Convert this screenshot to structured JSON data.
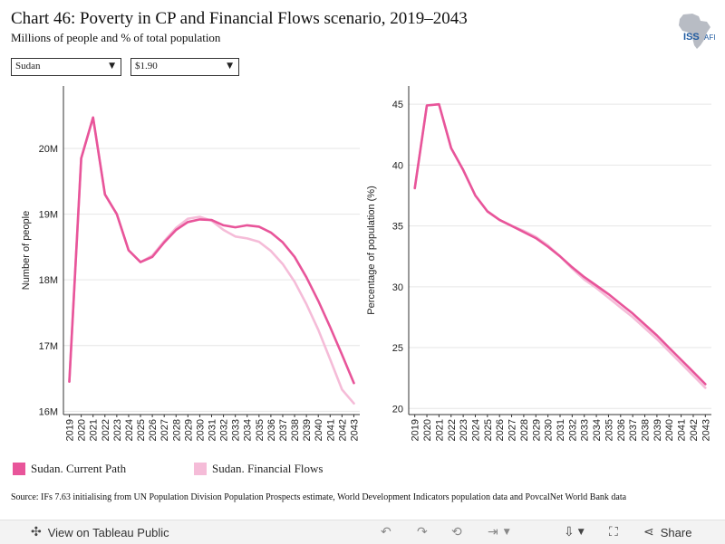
{
  "header": {
    "title": "Chart 46: Poverty in CP and Financial Flows scenario, 2019–2043",
    "subtitle": "Millions of people and % of total population",
    "logo_text": "ISS",
    "logo_subtext": "AFI"
  },
  "filters": {
    "country": "Sudan",
    "poverty_line": "$1.90"
  },
  "colors": {
    "current_path": "#e8559a",
    "financial_flows": "#f5bcd8",
    "grid": "#e6e6e6",
    "axis": "#333333"
  },
  "legend": {
    "items": [
      {
        "label": "Sudan. Current Path",
        "color": "#e8559a"
      },
      {
        "label": "Sudan. Financial Flows",
        "color": "#f5bcd8"
      }
    ]
  },
  "source": "Source: IFs 7.63 initialising from UN Population Division Population Prospects estimate, World Development Indicators population data and PovcalNet World Bank data",
  "footer": {
    "view_label": "View on Tableau Public",
    "share_label": "Share"
  },
  "chart_data": [
    {
      "type": "line",
      "ylabel": "Number of people",
      "ylim": [
        15.95,
        20.95
      ],
      "yticks": [
        16,
        17,
        18,
        19,
        20
      ],
      "ytick_labels": [
        "16M",
        "17M",
        "18M",
        "19M",
        "20M"
      ],
      "x": [
        2019,
        2020,
        2021,
        2022,
        2023,
        2024,
        2025,
        2026,
        2027,
        2028,
        2029,
        2030,
        2031,
        2032,
        2033,
        2034,
        2035,
        2036,
        2037,
        2038,
        2039,
        2040,
        2041,
        2042,
        2043
      ],
      "grid": true,
      "series": [
        {
          "name": "Sudan. Current Path",
          "values": [
            16.45,
            19.85,
            20.47,
            19.3,
            19.0,
            18.45,
            18.27,
            18.35,
            18.57,
            18.76,
            18.88,
            18.92,
            18.91,
            18.83,
            18.8,
            18.83,
            18.81,
            18.72,
            18.57,
            18.35,
            18.04,
            17.68,
            17.28,
            16.86,
            16.43
          ]
        },
        {
          "name": "Sudan. Financial Flows",
          "values": [
            16.45,
            19.85,
            20.47,
            19.3,
            19.0,
            18.45,
            18.27,
            18.37,
            18.59,
            18.79,
            18.93,
            18.96,
            18.9,
            18.76,
            18.66,
            18.63,
            18.58,
            18.44,
            18.24,
            17.97,
            17.63,
            17.24,
            16.79,
            16.33,
            16.12
          ]
        }
      ]
    },
    {
      "type": "line",
      "ylabel": "Percentage of population (%)",
      "ylim": [
        19.5,
        46.5
      ],
      "yticks": [
        20,
        25,
        30,
        35,
        40,
        45
      ],
      "ytick_labels": [
        "20",
        "25",
        "30",
        "35",
        "40",
        "45"
      ],
      "x": [
        2019,
        2020,
        2021,
        2022,
        2023,
        2024,
        2025,
        2026,
        2027,
        2028,
        2029,
        2030,
        2031,
        2032,
        2033,
        2034,
        2035,
        2036,
        2037,
        2038,
        2039,
        2040,
        2041,
        2042,
        2043
      ],
      "grid": true,
      "series": [
        {
          "name": "Sudan. Current Path",
          "values": [
            38.1,
            44.9,
            45.0,
            41.4,
            39.6,
            37.5,
            36.2,
            35.5,
            35.0,
            34.5,
            34.0,
            33.3,
            32.5,
            31.6,
            30.8,
            30.1,
            29.4,
            28.6,
            27.8,
            26.9,
            26.0,
            25.0,
            24.0,
            23.0,
            22.0
          ]
        },
        {
          "name": "Sudan. Financial Flows",
          "values": [
            38.1,
            44.9,
            45.0,
            41.4,
            39.6,
            37.5,
            36.2,
            35.5,
            35.0,
            34.6,
            34.1,
            33.4,
            32.5,
            31.5,
            30.6,
            29.9,
            29.1,
            28.3,
            27.5,
            26.6,
            25.7,
            24.7,
            23.7,
            22.7,
            21.7
          ]
        }
      ]
    }
  ]
}
